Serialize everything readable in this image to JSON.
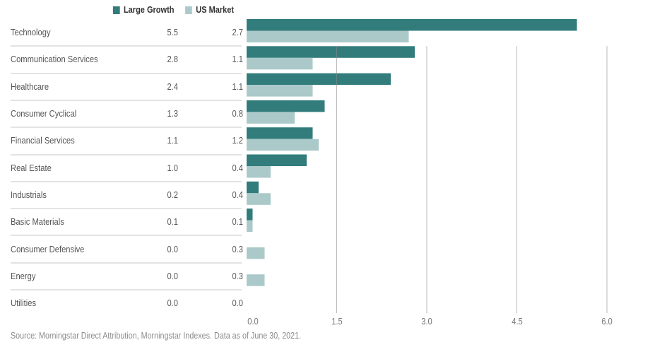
{
  "chart_data": {
    "type": "bar",
    "orientation": "horizontal",
    "title": "",
    "xlabel": "",
    "ylabel": "",
    "categories": [
      "Technology",
      "Communication Services",
      "Healthcare",
      "Consumer Cyclical",
      "Financial Services",
      "Real Estate",
      "Industrials",
      "Basic Materials",
      "Consumer Defensive",
      "Energy",
      "Utilities"
    ],
    "series": [
      {
        "name": "Large Growth",
        "color": "#337c7c",
        "values": [
          5.5,
          2.8,
          2.4,
          1.3,
          1.1,
          1.0,
          0.2,
          0.1,
          0.0,
          0.0,
          0.0
        ]
      },
      {
        "name": "US Market",
        "color": "#abc9c9",
        "values": [
          2.7,
          1.1,
          1.1,
          0.8,
          1.2,
          0.4,
          0.4,
          0.1,
          0.3,
          0.3,
          0.0
        ]
      }
    ],
    "xlim": [
      0,
      6.0
    ],
    "xticks": [
      "0.0",
      "1.5",
      "3.0",
      "4.5",
      "6.0"
    ],
    "grid": true,
    "legend_position": "top-left",
    "value_labels": {
      "Large Growth": [
        "5.5",
        "2.8",
        "2.4",
        "1.3",
        "1.1",
        "1.0",
        "0.2",
        "0.1",
        "0.0",
        "0.0",
        "0.0"
      ],
      "US Market": [
        "2.7",
        "1.1",
        "1.1",
        "0.8",
        "1.2",
        "0.4",
        "0.4",
        "0.1",
        "0.3",
        "0.3",
        "0.0"
      ]
    },
    "source": "Source: Morningstar Direct Attribution, Morningstar Indexes. Data as of June 30, 2021."
  }
}
